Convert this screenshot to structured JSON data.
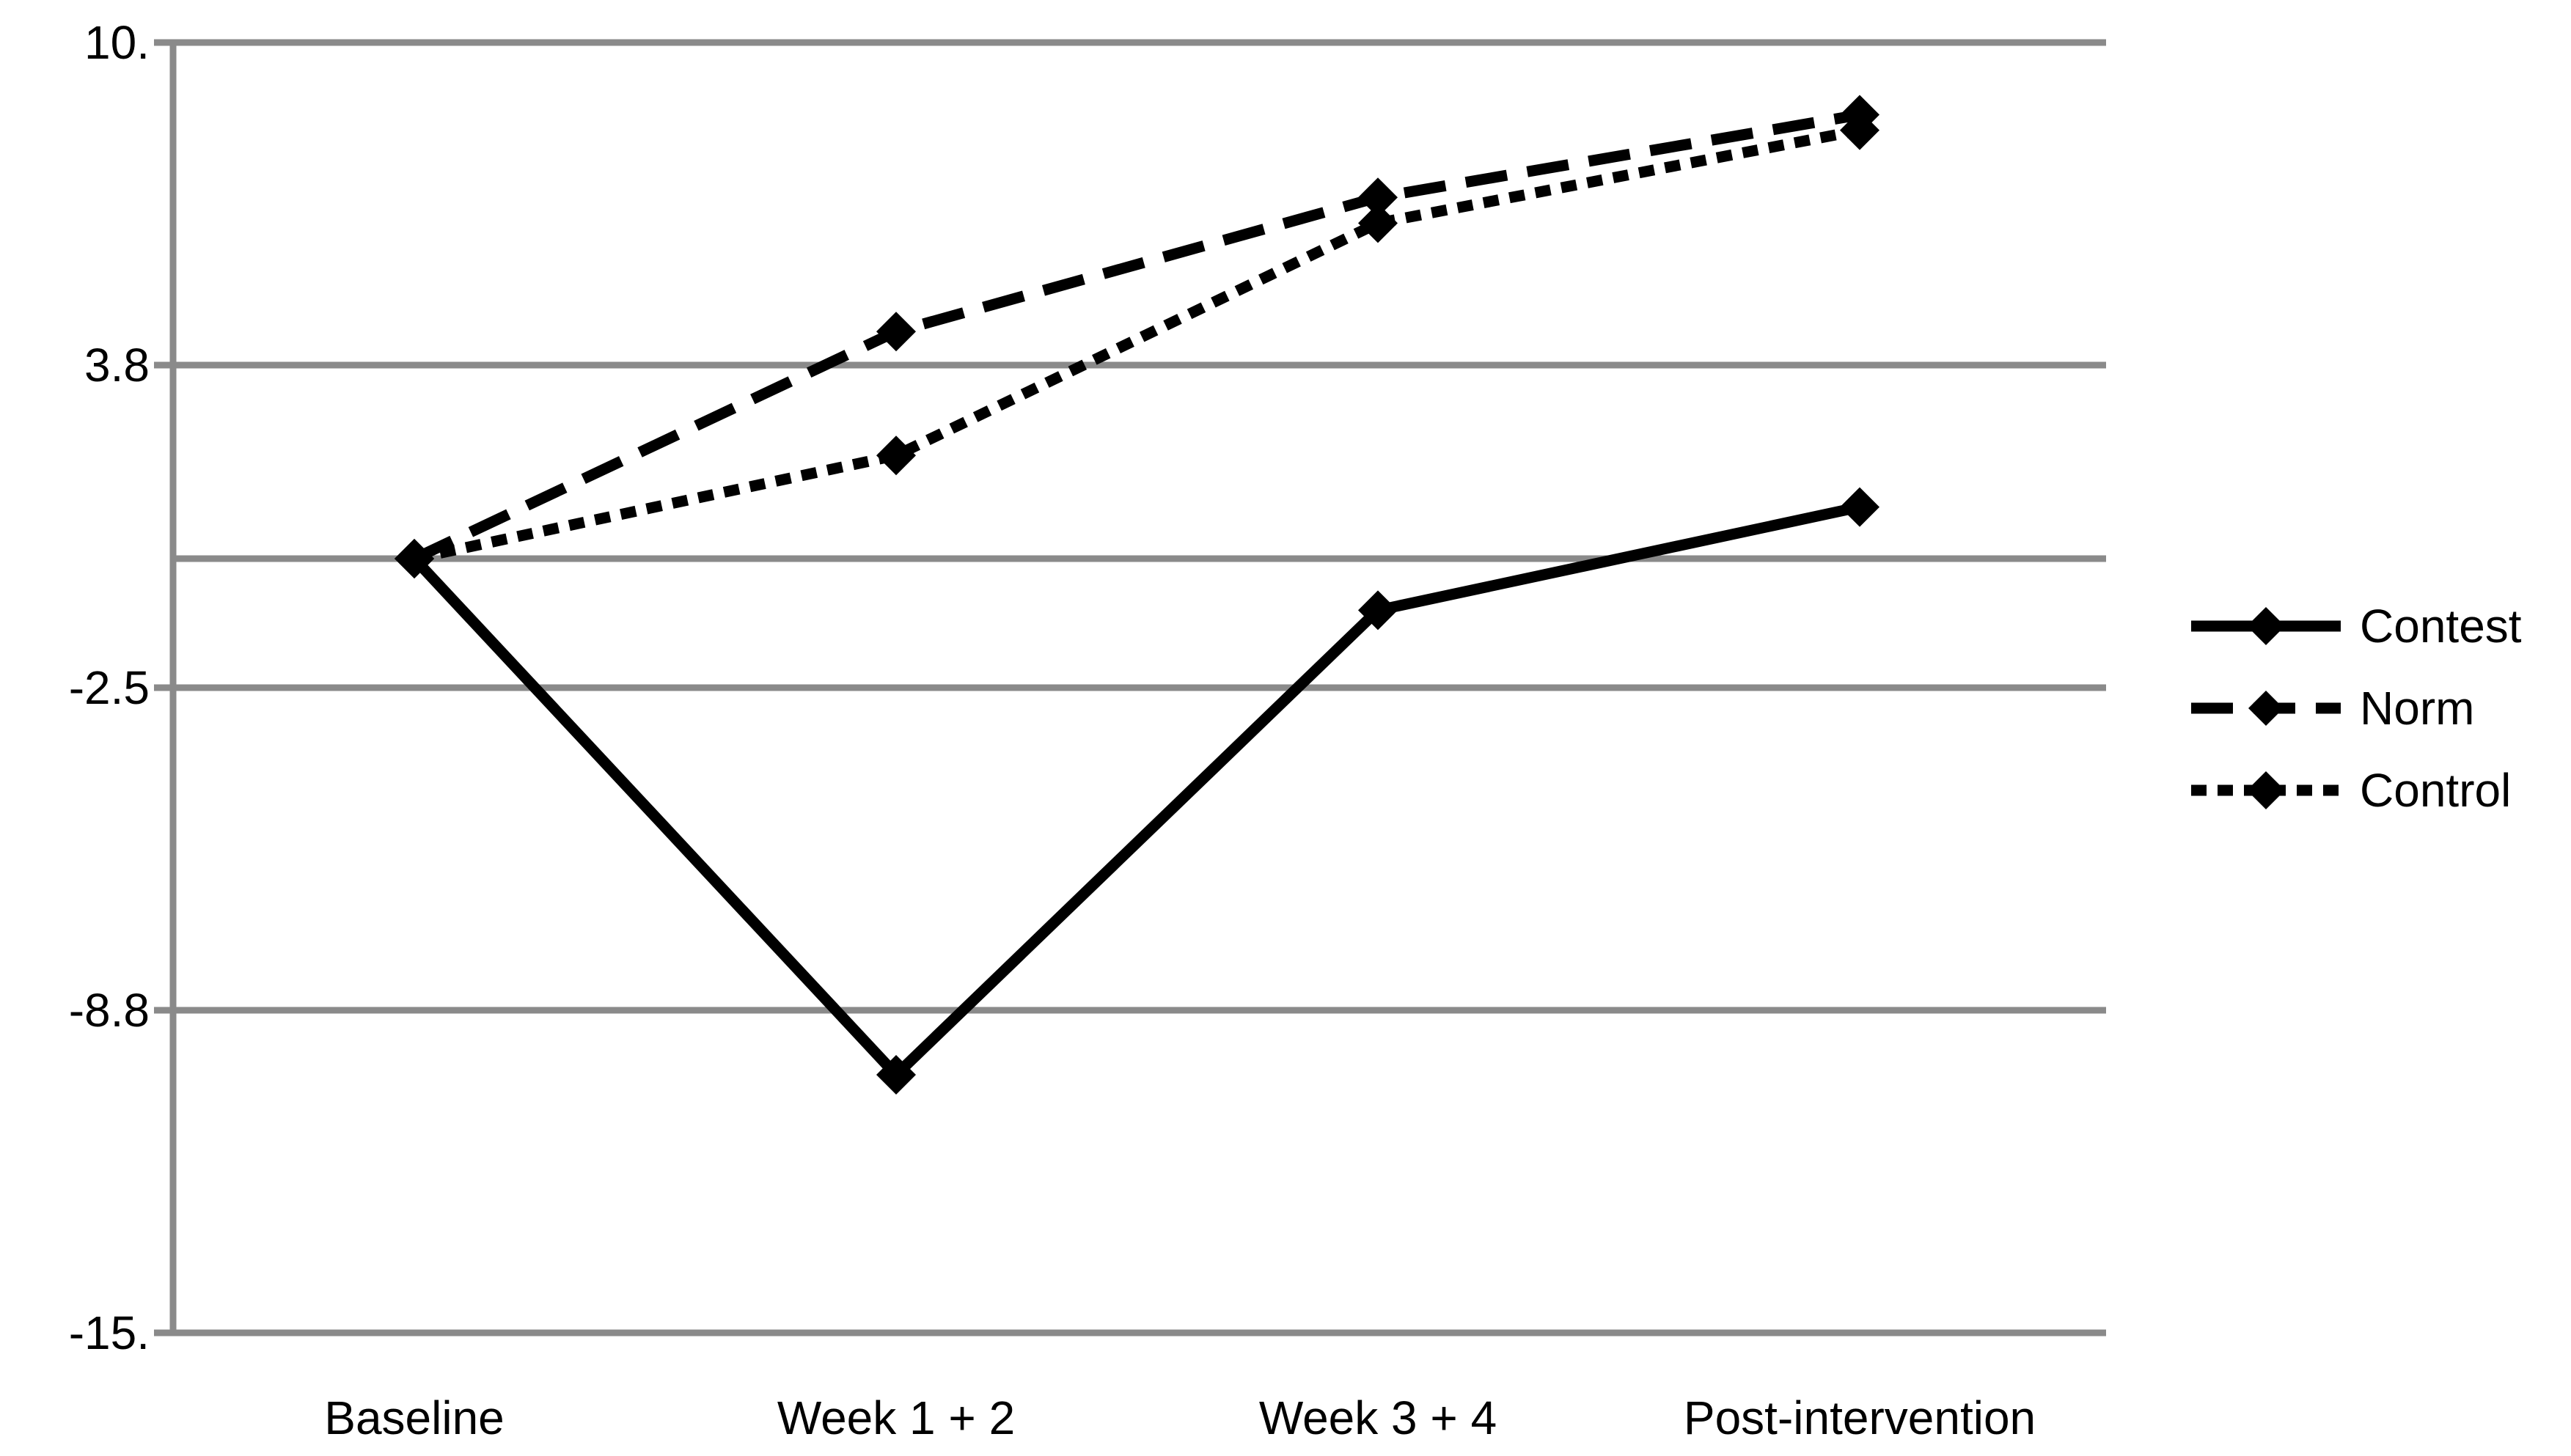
{
  "chart_data": {
    "type": "line",
    "title": "",
    "xlabel": "",
    "ylabel": "",
    "categories": [
      "Baseline",
      "Week 1 + 2",
      "Week 3 + 4",
      "Post-intervention"
    ],
    "series": [
      {
        "name": "Contest",
        "style": "solid",
        "marker": "diamond",
        "values": [
          0,
          -10,
          -1,
          1
        ]
      },
      {
        "name": "Norm",
        "style": "dashed",
        "marker": "diamond",
        "values": [
          0,
          4.4,
          7.0,
          8.6
        ]
      },
      {
        "name": "Control",
        "style": "dotted",
        "marker": "diamond",
        "values": [
          0,
          2.0,
          6.5,
          8.3
        ]
      }
    ],
    "y_axis": {
      "min": -15,
      "max": 10,
      "ticks": [
        10,
        3.75,
        -2.5,
        -8.75,
        -15
      ],
      "tick_labels": [
        "10.",
        "3.8",
        "-2.5",
        "-8.8",
        "-15."
      ],
      "zero_axis_line": true
    },
    "x_axis": {
      "labels_position": "low"
    },
    "legend": {
      "position": "right",
      "items": [
        {
          "label": "Contest"
        },
        {
          "label": "Norm"
        },
        {
          "label": "Control"
        }
      ]
    },
    "grid": true,
    "colors": {
      "series": "#000000",
      "gridline": "#8a8a8a",
      "text": "#000000",
      "background": "#ffffff"
    }
  }
}
